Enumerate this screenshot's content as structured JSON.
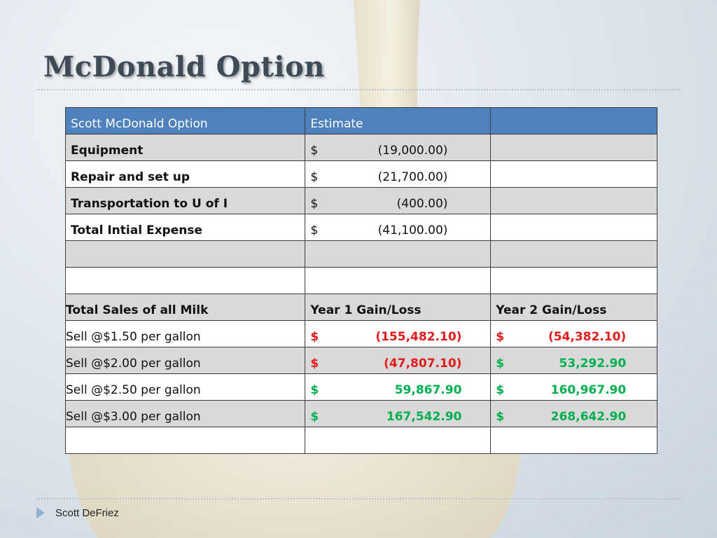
{
  "slide": {
    "title": "McDonald Option",
    "footer_author": "Scott DeFriez"
  },
  "colors": {
    "header_fill": "#4f81bd",
    "loss_red": "#e31b1b",
    "gain_green": "#00b050",
    "row_gray": "#d9d9d9"
  },
  "table": {
    "header": {
      "col1": "Scott McDonald Option",
      "col2": "Estimate",
      "col3": ""
    },
    "expenses": [
      {
        "label": "Equipment",
        "dollar": "$",
        "amount": "(19,000.00)"
      },
      {
        "label": "Repair and set up",
        "dollar": "$",
        "amount": "(21,700.00)"
      },
      {
        "label": "Transportation to U of I",
        "dollar": "$",
        "amount": "(400.00)"
      },
      {
        "label": "Total Intial Expense",
        "dollar": "$",
        "amount": "(41,100.00)"
      }
    ],
    "sales_header": {
      "col1": "Total Sales of all Milk",
      "col2": "Year 1 Gain/Loss",
      "col3": "Year 2 Gain/Loss"
    },
    "sales": [
      {
        "label": "Sell @$1.50 per gallon",
        "y1_dollar": "$",
        "y1": "(155,482.10)",
        "y2_dollar": "$",
        "y2": "(54,382.10)"
      },
      {
        "label": "Sell @$2.00 per gallon",
        "y1_dollar": "$",
        "y1": "(47,807.10)",
        "y2_dollar": "$",
        "y2": "53,292.90"
      },
      {
        "label": "Sell @$2.50 per gallon",
        "y1_dollar": "$",
        "y1": "59,867.90",
        "y2_dollar": "$",
        "y2": "160,967.90"
      },
      {
        "label": "Sell @$3.00 per gallon",
        "y1_dollar": "$",
        "y1": "167,542.90",
        "y2_dollar": "$",
        "y2": "268,642.90"
      }
    ]
  }
}
